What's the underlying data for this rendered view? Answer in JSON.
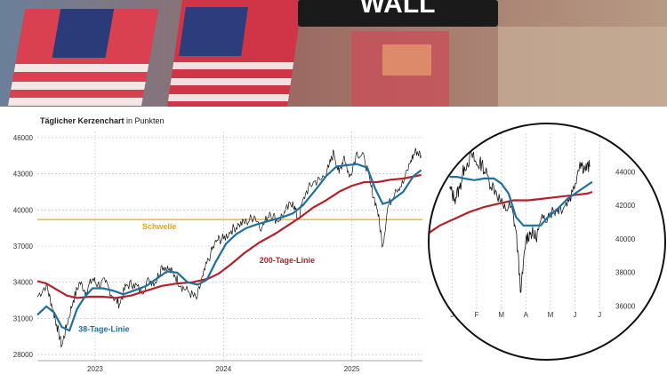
{
  "banner": {
    "sign_text": "WALL",
    "colors": {
      "sky": "#7a8ea8",
      "flag_red": "#c8283a",
      "flag_blue": "#2b3a78",
      "sign": "#1a1a1a"
    }
  },
  "colors": {
    "price": "#111111",
    "ma38": "#1f6f9f",
    "ma200": "#b5202a",
    "threshold": "#f0a30a",
    "grid": "#bdbdbd",
    "axis_text": "#333333"
  },
  "chart_data": [
    {
      "type": "line",
      "title_bold": "Täglicher Kerzenchart",
      "title_rest": " in Punkten",
      "y_ticks": [
        28000,
        31000,
        34000,
        37000,
        40000,
        43000,
        46000
      ],
      "y_tick_labels": [
        "28000",
        "31000",
        "34000",
        "37000",
        "40000",
        "43000",
        "46000"
      ],
      "ylim": [
        27500,
        46500
      ],
      "x_tick_labels": [
        "2023",
        "2024",
        "2025"
      ],
      "x_ticks": [
        2023.0,
        2024.0,
        2025.0
      ],
      "xlim": [
        2022.55,
        2025.55
      ],
      "threshold": {
        "label": "Schwelle",
        "value": 39200
      },
      "annotations": {
        "ma200": "200-Tage-Linie",
        "ma38": "38-Tage-Linie"
      },
      "series": [
        {
          "key": "price",
          "points": [
            [
              2022.55,
              32800
            ],
            [
              2022.62,
              33800
            ],
            [
              2022.66,
              32200
            ],
            [
              2022.7,
              30500
            ],
            [
              2022.74,
              28700
            ],
            [
              2022.78,
              30500
            ],
            [
              2022.83,
              32500
            ],
            [
              2022.88,
              34000
            ],
            [
              2022.93,
              33200
            ],
            [
              2022.98,
              34300
            ],
            [
              2023.02,
              33800
            ],
            [
              2023.08,
              34000
            ],
            [
              2023.14,
              32800
            ],
            [
              2023.19,
              32200
            ],
            [
              2023.24,
              33700
            ],
            [
              2023.3,
              33900
            ],
            [
              2023.36,
              33200
            ],
            [
              2023.42,
              34200
            ],
            [
              2023.47,
              34000
            ],
            [
              2023.52,
              35400
            ],
            [
              2023.57,
              35100
            ],
            [
              2023.62,
              34600
            ],
            [
              2023.67,
              33700
            ],
            [
              2023.73,
              33200
            ],
            [
              2023.79,
              32600
            ],
            [
              2023.84,
              34500
            ],
            [
              2023.9,
              36400
            ],
            [
              2023.95,
              37500
            ],
            [
              2024.0,
              37600
            ],
            [
              2024.06,
              38300
            ],
            [
              2024.12,
              38800
            ],
            [
              2024.18,
              39000
            ],
            [
              2024.24,
              39500
            ],
            [
              2024.3,
              38500
            ],
            [
              2024.36,
              39800
            ],
            [
              2024.42,
              39100
            ],
            [
              2024.48,
              39800
            ],
            [
              2024.54,
              40700
            ],
            [
              2024.58,
              39200
            ],
            [
              2024.64,
              41400
            ],
            [
              2024.7,
              42300
            ],
            [
              2024.76,
              42500
            ],
            [
              2024.82,
              43500
            ],
            [
              2024.86,
              44800
            ],
            [
              2024.9,
              43000
            ],
            [
              2024.94,
              44500
            ],
            [
              2024.98,
              42700
            ],
            [
              2025.04,
              44800
            ],
            [
              2025.1,
              44200
            ],
            [
              2025.15,
              41900
            ],
            [
              2025.2,
              40000
            ],
            [
              2025.24,
              37000
            ],
            [
              2025.28,
              40200
            ],
            [
              2025.34,
              41700
            ],
            [
              2025.4,
              42200
            ],
            [
              2025.46,
              44100
            ],
            [
              2025.5,
              44900
            ],
            [
              2025.54,
              44500
            ]
          ]
        },
        {
          "key": "ma38",
          "points": [
            [
              2022.55,
              31300
            ],
            [
              2022.62,
              32000
            ],
            [
              2022.68,
              31500
            ],
            [
              2022.74,
              30300
            ],
            [
              2022.8,
              30000
            ],
            [
              2022.86,
              31800
            ],
            [
              2022.92,
              32800
            ],
            [
              2022.98,
              33500
            ],
            [
              2023.06,
              33500
            ],
            [
              2023.14,
              33300
            ],
            [
              2023.22,
              33000
            ],
            [
              2023.3,
              33300
            ],
            [
              2023.4,
              33700
            ],
            [
              2023.48,
              34300
            ],
            [
              2023.56,
              34900
            ],
            [
              2023.64,
              34800
            ],
            [
              2023.72,
              34000
            ],
            [
              2023.8,
              33800
            ],
            [
              2023.87,
              34200
            ],
            [
              2023.94,
              35700
            ],
            [
              2024.02,
              37200
            ],
            [
              2024.1,
              38000
            ],
            [
              2024.18,
              38500
            ],
            [
              2024.26,
              38800
            ],
            [
              2024.36,
              39100
            ],
            [
              2024.46,
              39400
            ],
            [
              2024.54,
              39700
            ],
            [
              2024.62,
              40400
            ],
            [
              2024.72,
              41700
            ],
            [
              2024.8,
              42800
            ],
            [
              2024.88,
              43600
            ],
            [
              2024.96,
              43700
            ],
            [
              2025.04,
              43800
            ],
            [
              2025.12,
              43500
            ],
            [
              2025.18,
              41800
            ],
            [
              2025.24,
              40500
            ],
            [
              2025.3,
              40700
            ],
            [
              2025.4,
              41500
            ],
            [
              2025.48,
              42800
            ],
            [
              2025.54,
              43300
            ]
          ]
        },
        {
          "key": "ma200",
          "points": [
            [
              2022.55,
              34100
            ],
            [
              2022.62,
              33900
            ],
            [
              2022.7,
              33400
            ],
            [
              2022.78,
              32900
            ],
            [
              2022.86,
              32700
            ],
            [
              2022.96,
              32800
            ],
            [
              2023.06,
              32800
            ],
            [
              2023.16,
              32700
            ],
            [
              2023.28,
              32900
            ],
            [
              2023.4,
              33300
            ],
            [
              2023.52,
              33700
            ],
            [
              2023.64,
              33900
            ],
            [
              2023.76,
              34000
            ],
            [
              2023.88,
              34300
            ],
            [
              2023.96,
              34700
            ],
            [
              2024.06,
              35500
            ],
            [
              2024.16,
              36400
            ],
            [
              2024.28,
              37300
            ],
            [
              2024.4,
              38000
            ],
            [
              2024.5,
              38700
            ],
            [
              2024.6,
              39400
            ],
            [
              2024.7,
              40200
            ],
            [
              2024.8,
              40800
            ],
            [
              2024.9,
              41500
            ],
            [
              2025.0,
              42000
            ],
            [
              2025.1,
              42300
            ],
            [
              2025.2,
              42300
            ],
            [
              2025.3,
              42500
            ],
            [
              2025.4,
              42600
            ],
            [
              2025.5,
              42800
            ],
            [
              2025.54,
              42900
            ]
          ]
        }
      ]
    },
    {
      "type": "line",
      "y_ticks": [
        36000,
        38000,
        40000,
        42000,
        44000
      ],
      "y_tick_labels": [
        "36000",
        "38000",
        "40000",
        "42000",
        "44000"
      ],
      "ylim": [
        35700,
        46300
      ],
      "x_tick_labels": [
        "J",
        "F",
        "M",
        "A",
        "M",
        "J",
        "J"
      ],
      "x_ticks": [
        0.5,
        1.5,
        2.5,
        3.5,
        4.5,
        5.5,
        6.5
      ],
      "xlim": [
        -0.6,
        7.0
      ],
      "series": [
        {
          "key": "price",
          "points": [
            [
              0.4,
              43000
            ],
            [
              0.6,
              42400
            ],
            [
              0.8,
              43000
            ],
            [
              1.0,
              44300
            ],
            [
              1.3,
              45000
            ],
            [
              1.5,
              44400
            ],
            [
              1.7,
              44500
            ],
            [
              2.0,
              43500
            ],
            [
              2.3,
              42800
            ],
            [
              2.6,
              41800
            ],
            [
              2.9,
              41900
            ],
            [
              3.1,
              40500
            ],
            [
              3.3,
              36800
            ],
            [
              3.5,
              40000
            ],
            [
              3.7,
              40400
            ],
            [
              3.9,
              40100
            ],
            [
              4.2,
              41200
            ],
            [
              4.5,
              41600
            ],
            [
              4.8,
              41800
            ],
            [
              5.1,
              42000
            ],
            [
              5.4,
              42800
            ],
            [
              5.7,
              44600
            ],
            [
              5.9,
              44200
            ],
            [
              6.1,
              44300
            ]
          ]
        },
        {
          "key": "ma38",
          "points": [
            [
              0.4,
              43700
            ],
            [
              0.7,
              43700
            ],
            [
              1.0,
              43600
            ],
            [
              1.4,
              43500
            ],
            [
              1.8,
              43600
            ],
            [
              2.2,
              43600
            ],
            [
              2.5,
              43300
            ],
            [
              2.8,
              42700
            ],
            [
              3.1,
              41300
            ],
            [
              3.4,
              40800
            ],
            [
              3.7,
              40800
            ],
            [
              4.1,
              40800
            ],
            [
              4.4,
              41300
            ],
            [
              4.8,
              41800
            ],
            [
              5.2,
              42400
            ],
            [
              5.6,
              42800
            ],
            [
              6.0,
              43200
            ],
            [
              6.2,
              43400
            ]
          ]
        },
        {
          "key": "ma200",
          "points": [
            [
              -0.6,
              40200
            ],
            [
              0.0,
              40800
            ],
            [
              0.6,
              41200
            ],
            [
              1.2,
              41600
            ],
            [
              1.8,
              41900
            ],
            [
              2.4,
              42100
            ],
            [
              3.0,
              42300
            ],
            [
              3.6,
              42300
            ],
            [
              4.2,
              42400
            ],
            [
              4.8,
              42500
            ],
            [
              5.4,
              42600
            ],
            [
              6.0,
              42700
            ],
            [
              6.2,
              42800
            ]
          ]
        }
      ]
    }
  ]
}
